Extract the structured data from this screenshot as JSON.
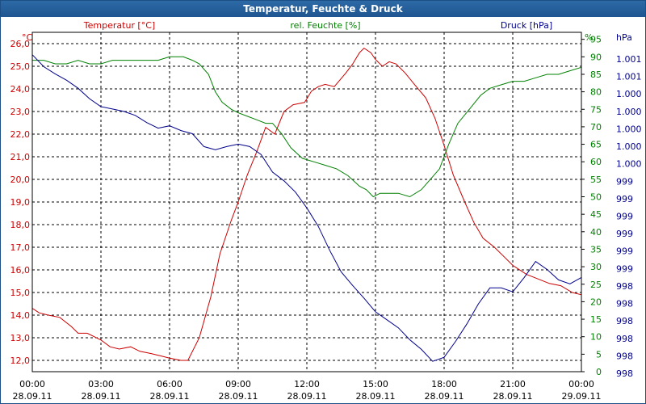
{
  "chart_data": {
    "type": "line",
    "title": "Temperatur, Feuchte & Druck",
    "x_ticks": [
      {
        "time": "00:00",
        "date": "28.09.11"
      },
      {
        "time": "03:00",
        "date": "28.09.11"
      },
      {
        "time": "06:00",
        "date": "28.09.11"
      },
      {
        "time": "09:00",
        "date": "28.09.11"
      },
      {
        "time": "12:00",
        "date": "28.09.11"
      },
      {
        "time": "15:00",
        "date": "28.09.11"
      },
      {
        "time": "18:00",
        "date": "28.09.11"
      },
      {
        "time": "21:00",
        "date": "28.09.11"
      },
      {
        "time": "00:00",
        "date": "29.09.11"
      }
    ],
    "xlim_hours": [
      0,
      24
    ],
    "grid": true,
    "axes": {
      "temperature": {
        "label": "Temperatur [°C]",
        "unit": "°C",
        "color": "#cc0000",
        "range": [
          11.5,
          26.5
        ],
        "ticks": [
          "12,0",
          "13,0",
          "14,0",
          "15,0",
          "16,0",
          "17,0",
          "18,0",
          "19,0",
          "20,0",
          "21,0",
          "22,0",
          "23,0",
          "24,0",
          "25,0",
          "26,0"
        ]
      },
      "humidity": {
        "label": "rel. Feuchte [%]",
        "unit": "%",
        "color": "#008000",
        "range": [
          0,
          97
        ],
        "ticks": [
          "0",
          "5",
          "10",
          "15",
          "20",
          "25",
          "30",
          "35",
          "40",
          "45",
          "50",
          "55",
          "60",
          "65",
          "70",
          "75",
          "80",
          "85",
          "90",
          "95"
        ]
      },
      "pressure": {
        "label": "Druck [hPa]",
        "unit": "hPa",
        "color": "#00008b",
        "ticks": [
          "998",
          "998",
          "998",
          "998",
          "998",
          "998",
          "999",
          "999",
          "999",
          "999",
          "999",
          "999",
          "1.000",
          "1.000",
          "1.000",
          "1.000",
          "1.000",
          "1.001",
          "1.001"
        ]
      }
    },
    "series": [
      {
        "name": "Temperatur [°C]",
        "axis": "temperature",
        "color": "#cc0000",
        "x": [
          0,
          0.3,
          0.7,
          1.2,
          1.7,
          2,
          2.4,
          3,
          3.4,
          3.8,
          4.3,
          4.7,
          5.2,
          5.6,
          6,
          6.5,
          6.8,
          7.3,
          7.8,
          8.2,
          8.7,
          9,
          9.4,
          9.8,
          10.2,
          10.6,
          11,
          11.4,
          11.9,
          12.2,
          12.5,
          12.8,
          13.2,
          13.7,
          14,
          14.3,
          14.5,
          14.8,
          15,
          15.3,
          15.6,
          15.9,
          16.3,
          16.7,
          17.2,
          17.6,
          18,
          18.4,
          18.9,
          19.3,
          19.7,
          20.2,
          20.6,
          21,
          21.6,
          22.1,
          22.6,
          23.1,
          23.6,
          24
        ],
        "y": [
          14.3,
          14.1,
          14.0,
          13.9,
          13.5,
          13.2,
          13.2,
          12.9,
          12.6,
          12.5,
          12.6,
          12.4,
          12.3,
          12.2,
          12.1,
          12.0,
          12.0,
          13.0,
          14.8,
          16.7,
          18.2,
          19.0,
          20.2,
          21.2,
          22.3,
          22.0,
          23.0,
          23.3,
          23.4,
          23.9,
          24.1,
          24.2,
          24.1,
          24.7,
          25.1,
          25.6,
          25.8,
          25.6,
          25.3,
          25.0,
          25.2,
          25.1,
          24.7,
          24.2,
          23.6,
          22.7,
          21.5,
          20.2,
          19.0,
          18.1,
          17.4,
          17.0,
          16.6,
          16.2,
          15.8,
          15.6,
          15.4,
          15.3,
          15.0,
          14.9
        ]
      },
      {
        "name": "rel. Feuchte [%]",
        "axis": "humidity",
        "color": "#008000",
        "x": [
          0,
          0.5,
          1,
          1.5,
          2,
          2.5,
          3,
          3.5,
          4,
          4.5,
          5,
          5.5,
          6,
          6.3,
          6.6,
          7,
          7.3,
          7.7,
          8,
          8.3,
          8.7,
          9,
          9.4,
          9.8,
          10.2,
          10.5,
          10.9,
          11.3,
          11.8,
          12.3,
          12.8,
          13.3,
          13.8,
          14.3,
          14.6,
          14.9,
          15.2,
          15.6,
          16,
          16.5,
          17,
          17.4,
          17.8,
          18.2,
          18.6,
          19.1,
          19.6,
          20,
          20.5,
          21,
          21.5,
          22,
          22.5,
          23,
          23.5,
          24
        ],
        "y": [
          89,
          89,
          88,
          88,
          89,
          88,
          88,
          89,
          89,
          89,
          89,
          89,
          90,
          90,
          90,
          89,
          88,
          85,
          80,
          77,
          75,
          74,
          73,
          72,
          71,
          71,
          68,
          64,
          61,
          60,
          59,
          58,
          56,
          53,
          52,
          50,
          51,
          51,
          51,
          50,
          52,
          55,
          58,
          65,
          71,
          75,
          79,
          81,
          82,
          83,
          83,
          84,
          85,
          85,
          86,
          87
        ]
      },
      {
        "name": "Druck [hPa]",
        "axis": "pressure",
        "color": "#00008b",
        "x": [
          0,
          0.5,
          1,
          1.5,
          2,
          2.5,
          3,
          3.5,
          4,
          4.5,
          5,
          5.5,
          6,
          6.5,
          7,
          7.5,
          8,
          8.5,
          9,
          9.5,
          10,
          10.5,
          11,
          11.5,
          12,
          12.5,
          13,
          13.5,
          14,
          14.5,
          15,
          15.5,
          16,
          16.5,
          17,
          17.5,
          18,
          18.5,
          19,
          19.5,
          20,
          20.5,
          21,
          21.5,
          22,
          22.5,
          23,
          23.5,
          24
        ],
        "y": [
          1001.47,
          1001.32,
          1001.23,
          1001.15,
          1001.05,
          1000.92,
          1000.82,
          1000.79,
          1000.76,
          1000.71,
          1000.62,
          1000.55,
          1000.58,
          1000.52,
          1000.48,
          1000.32,
          1000.28,
          1000.32,
          1000.35,
          1000.32,
          1000.22,
          1000.0,
          999.89,
          999.75,
          999.55,
          999.32,
          999.02,
          998.75,
          998.58,
          998.42,
          998.25,
          998.15,
          998.05,
          997.9,
          997.78,
          997.63,
          997.68,
          997.88,
          998.1,
          998.35,
          998.55,
          998.55,
          998.5,
          998.68,
          998.88,
          998.78,
          998.65,
          998.6,
          998.68
        ]
      }
    ]
  }
}
